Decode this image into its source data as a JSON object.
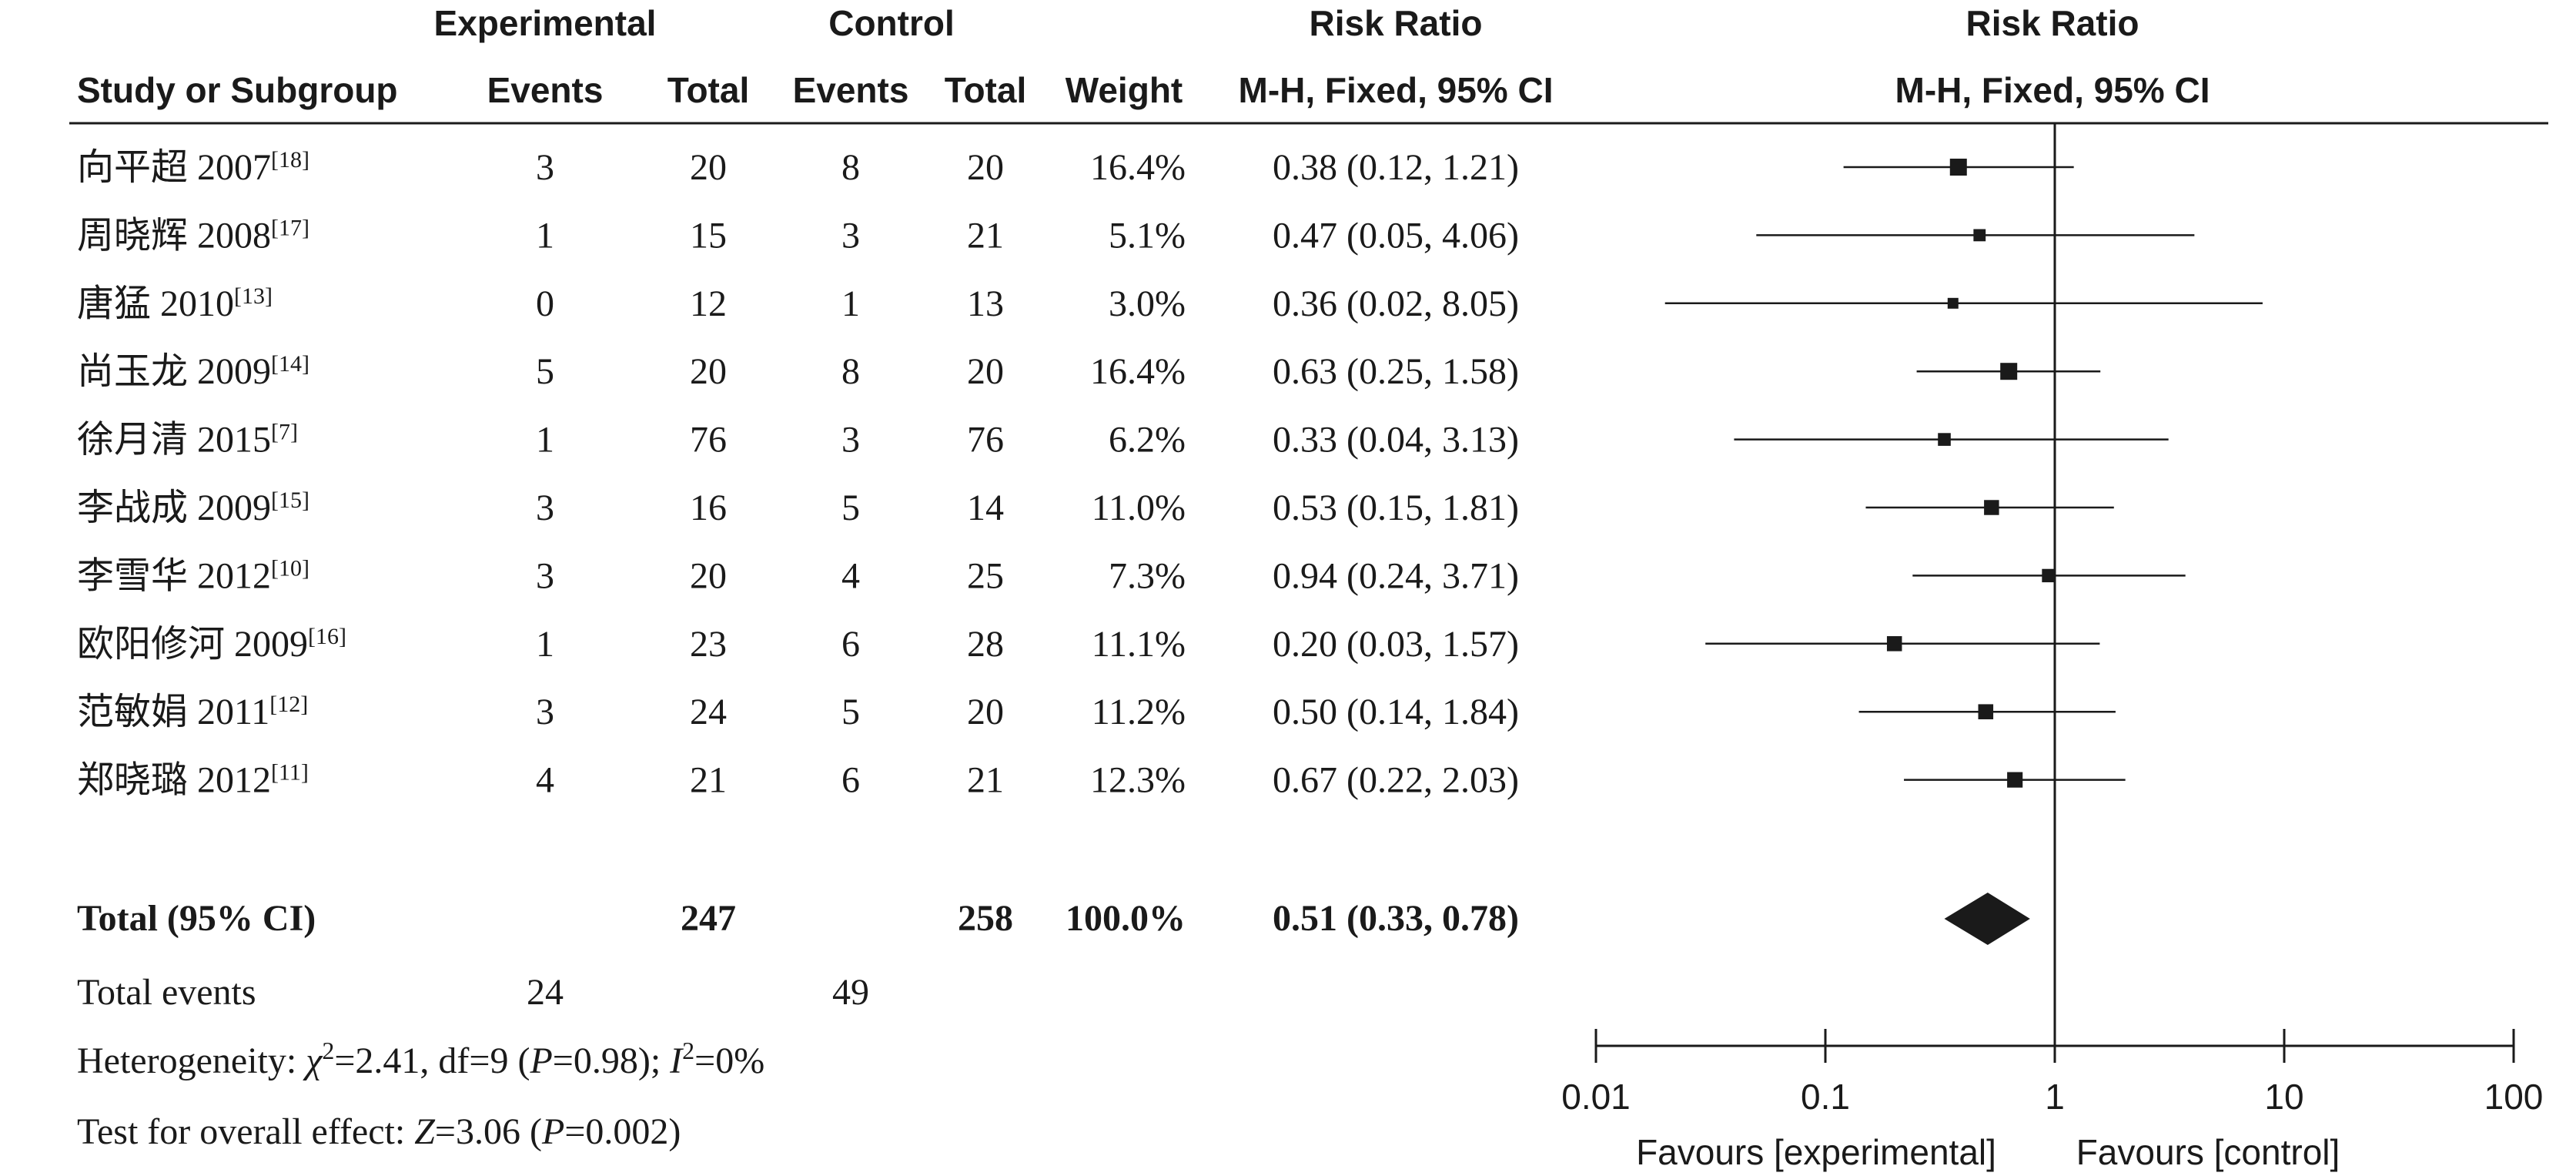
{
  "headers": {
    "group_experimental": "Experimental",
    "group_control": "Control",
    "group_risk_ratio": "Risk Ratio",
    "study": "Study or Subgroup",
    "exp_events": "Events",
    "exp_total": "Total",
    "ctl_events": "Events",
    "ctl_total": "Total",
    "weight": "Weight",
    "method": "M-H, Fixed, 95% CI",
    "plot_title": "Risk Ratio",
    "plot_method": "M-H, Fixed, 95% CI"
  },
  "studies": [
    {
      "name": "向平超 2007",
      "ref": "[18]",
      "exp_events": "3",
      "exp_total": "20",
      "ctl_events": "8",
      "ctl_total": "20",
      "weight": "16.4%",
      "ci_text": "0.38 (0.12, 1.21)"
    },
    {
      "name": "周晓辉 2008",
      "ref": "[17]",
      "exp_events": "1",
      "exp_total": "15",
      "ctl_events": "3",
      "ctl_total": "21",
      "weight": "5.1%",
      "ci_text": "0.47 (0.05, 4.06)"
    },
    {
      "name": "唐猛 2010",
      "ref": "[13]",
      "exp_events": "0",
      "exp_total": "12",
      "ctl_events": "1",
      "ctl_total": "13",
      "weight": "3.0%",
      "ci_text": "0.36 (0.02, 8.05)"
    },
    {
      "name": "尚玉龙 2009",
      "ref": "[14]",
      "exp_events": "5",
      "exp_total": "20",
      "ctl_events": "8",
      "ctl_total": "20",
      "weight": "16.4%",
      "ci_text": "0.63 (0.25, 1.58)"
    },
    {
      "name": "徐月清 2015",
      "ref": "[7]",
      "exp_events": "1",
      "exp_total": "76",
      "ctl_events": "3",
      "ctl_total": "76",
      "weight": "6.2%",
      "ci_text": "0.33 (0.04, 3.13)"
    },
    {
      "name": "李战成 2009",
      "ref": "[15]",
      "exp_events": "3",
      "exp_total": "16",
      "ctl_events": "5",
      "ctl_total": "14",
      "weight": "11.0%",
      "ci_text": "0.53 (0.15, 1.81)"
    },
    {
      "name": "李雪华 2012",
      "ref": "[10]",
      "exp_events": "3",
      "exp_total": "20",
      "ctl_events": "4",
      "ctl_total": "25",
      "weight": "7.3%",
      "ci_text": "0.94 (0.24, 3.71)"
    },
    {
      "name": "欧阳修河 2009",
      "ref": "[16]",
      "exp_events": "1",
      "exp_total": "23",
      "ctl_events": "6",
      "ctl_total": "28",
      "weight": "11.1%",
      "ci_text": "0.20 (0.03, 1.57)"
    },
    {
      "name": "范敏娟 2011",
      "ref": "[12]",
      "exp_events": "3",
      "exp_total": "24",
      "ctl_events": "5",
      "ctl_total": "20",
      "weight": "11.2%",
      "ci_text": "0.50 (0.14, 1.84)"
    },
    {
      "name": "郑晓璐 2012",
      "ref": "[11]",
      "exp_events": "4",
      "exp_total": "21",
      "ctl_events": "6",
      "ctl_total": "21",
      "weight": "12.3%",
      "ci_text": "0.67 (0.22, 2.03)"
    }
  ],
  "total": {
    "label": "Total (95% CI)",
    "exp_total": "247",
    "ctl_total": "258",
    "weight": "100.0%",
    "ci_text": "0.51 (0.33, 0.78)"
  },
  "total_events": {
    "label": "Total events",
    "exp": "24",
    "ctl": "49"
  },
  "heterogeneity": {
    "prefix": "Heterogeneity: ",
    "chi_symbol": "χ",
    "sup2": "2",
    "chi_value": "=2.41, df=9 (",
    "p_symbol": "P",
    "p_value": "=0.98); ",
    "i_symbol": "I",
    "i_value": "=0%"
  },
  "overall_effect": {
    "prefix": "Test for overall effect: ",
    "z_symbol": "Z",
    "z_value": "=3.06 (",
    "p_symbol": "P",
    "p_value": "=0.002)"
  },
  "chart_data": {
    "type": "forest",
    "scale": "log",
    "xlim": [
      0.01,
      100
    ],
    "reference_line": 1,
    "ticks": [
      0.01,
      0.1,
      1,
      10,
      100
    ],
    "tick_labels": [
      "0.01",
      "0.1",
      "1",
      "10",
      "100"
    ],
    "favours_left": "Favours [experimental]",
    "favours_right": "Favours [control]",
    "studies": [
      {
        "rr": 0.38,
        "lo": 0.12,
        "hi": 1.21,
        "weight": 16.4
      },
      {
        "rr": 0.47,
        "lo": 0.05,
        "hi": 4.06,
        "weight": 5.1
      },
      {
        "rr": 0.36,
        "lo": 0.02,
        "hi": 8.05,
        "weight": 3.0
      },
      {
        "rr": 0.63,
        "lo": 0.25,
        "hi": 1.58,
        "weight": 16.4
      },
      {
        "rr": 0.33,
        "lo": 0.04,
        "hi": 3.13,
        "weight": 6.2
      },
      {
        "rr": 0.53,
        "lo": 0.15,
        "hi": 1.81,
        "weight": 11.0
      },
      {
        "rr": 0.94,
        "lo": 0.24,
        "hi": 3.71,
        "weight": 7.3
      },
      {
        "rr": 0.2,
        "lo": 0.03,
        "hi": 1.57,
        "weight": 11.1
      },
      {
        "rr": 0.5,
        "lo": 0.14,
        "hi": 1.84,
        "weight": 11.2
      },
      {
        "rr": 0.67,
        "lo": 0.22,
        "hi": 2.03,
        "weight": 12.3
      }
    ],
    "pooled": {
      "rr": 0.51,
      "lo": 0.33,
      "hi": 0.78
    }
  }
}
